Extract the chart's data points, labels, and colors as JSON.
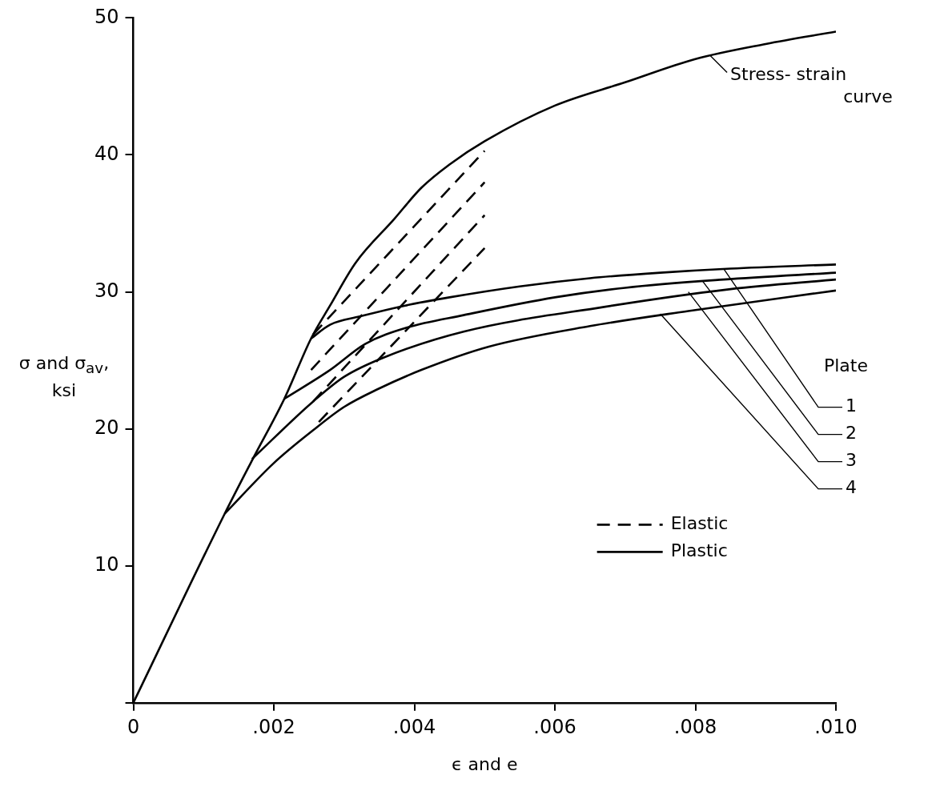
{
  "chart_data": {
    "type": "line",
    "xlabel": "ϵ and e",
    "ylabel": "σ  and σ$_{av}$, ksi",
    "xlim": [
      0,
      0.01
    ],
    "xticks": [
      0,
      {
        "value": 0.002,
        "label": ".002"
      },
      {
        "value": 0.004,
        "label": ".004"
      },
      {
        "value": 0.006,
        "label": ".006"
      },
      {
        "value": 0.008,
        "label": ".008"
      },
      {
        "value": 0.01,
        "label": ".010"
      }
    ],
    "ylim": [
      0,
      50
    ],
    "yticks": [
      {
        "value": 0,
        "label": null
      },
      10,
      20,
      30,
      40,
      50
    ],
    "grid": false,
    "marker": "none",
    "legend": "bottom right",
    "series": [
      {
        "color": "#000000",
        "line_style": "solid",
        "x": [
          0,
          0.0013,
          0.0017,
          0.00215,
          0.00253,
          0.0028,
          0.00316,
          0.00371,
          0.0041,
          0.0045,
          0.005,
          0.006,
          0.007,
          0.008,
          0.009,
          0.01
        ],
        "values": [
          0,
          13.8,
          17.8,
          22.2,
          26.6,
          29,
          32.1,
          35.3,
          37.6,
          39.3,
          41,
          43.6,
          45.3,
          47,
          48.1,
          49
        ]
      },
      {
        "name": "Elastic",
        "color": "#000000",
        "line_style": "dashed",
        "x": [
          0.00256,
          0.005
        ],
        "values": [
          26.9,
          40.3
        ]
      },
      {
        "color": "#000000",
        "line_style": "dashed",
        "x": [
          0.00253,
          0.005
        ],
        "values": [
          24.3,
          38.0
        ]
      },
      {
        "color": "#000000",
        "line_style": "dashed",
        "x": [
          0.00256,
          0.005
        ],
        "values": [
          22.0,
          35.6
        ]
      },
      {
        "color": "#000000",
        "line_style": "dashed",
        "x": [
          0.00264,
          0.005
        ],
        "values": [
          20.5,
          33.2
        ]
      },
      {
        "name": "Plastic",
        "color": "#000000",
        "line_style": "solid",
        "x": [
          0.00253,
          0.0028,
          0.00322,
          0.00387,
          0.0045,
          0.0055,
          0.0065,
          0.0075,
          0.0085,
          0.01
        ],
        "values": [
          26.6,
          27.6,
          28.2,
          29.0,
          29.6,
          30.4,
          31.0,
          31.4,
          31.7,
          32.0
        ]
      },
      {
        "color": "#000000",
        "line_style": "solid",
        "x": [
          0.00215,
          0.0028,
          0.0033,
          0.0039,
          0.0047,
          0.006,
          0.007,
          0.0084,
          0.01
        ],
        "values": [
          22.2,
          24.3,
          26.2,
          27.4,
          28.3,
          29.6,
          30.3,
          30.9,
          31.4
        ]
      },
      {
        "color": "#000000",
        "line_style": "solid",
        "x": [
          0.00169,
          0.00256,
          0.003,
          0.00356,
          0.0047,
          0.0067,
          0.0085,
          0.01
        ],
        "values": [
          17.8,
          22.0,
          23.8,
          25.2,
          27.1,
          28.9,
          30.2,
          30.9
        ]
      },
      {
        "color": "#000000",
        "line_style": "solid",
        "x": [
          0.0013,
          0.002,
          0.00256,
          0.003,
          0.00348,
          0.0041,
          0.00506,
          0.0065,
          0.0079,
          0.01
        ],
        "values": [
          13.8,
          17.5,
          19.9,
          21.6,
          22.9,
          24.3,
          26.0,
          27.5,
          28.6,
          30.1
        ]
      }
    ],
    "annotations": [
      {
        "text": "Stress- strain curve",
        "x": 0.0082,
        "y": 47.3
      },
      "Plate",
      {
        "text": "1",
        "x": 0.0084,
        "y": 31.7
      },
      {
        "text": "2",
        "x": 0.0081,
        "y": 30.8
      },
      {
        "text": "3",
        "x": 0.0079,
        "y": 30.0
      },
      {
        "text": "4",
        "x": 0.0075,
        "y": 28.4
      }
    ]
  }
}
